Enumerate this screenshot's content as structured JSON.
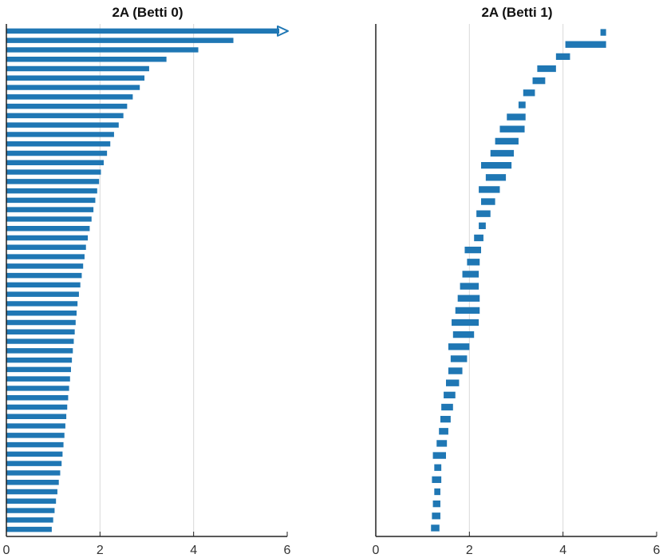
{
  "colors": {
    "bar": "#1f77b4",
    "grid": "#d9d9d9",
    "axis": "#222222"
  },
  "chart_data": [
    {
      "type": "barcode",
      "title": "2A (Betti 0)",
      "xlim": [
        0,
        6
      ],
      "xticks": [
        "0",
        "2",
        "4",
        "6"
      ],
      "grid": "vertical",
      "infinite_bar": {
        "birth": 0,
        "marker": "arrow"
      },
      "intervals": [
        [
          0,
          4.85
        ],
        [
          0,
          4.1
        ],
        [
          0,
          3.42
        ],
        [
          0,
          3.05
        ],
        [
          0,
          2.95
        ],
        [
          0,
          2.85
        ],
        [
          0,
          2.7
        ],
        [
          0,
          2.58
        ],
        [
          0,
          2.5
        ],
        [
          0,
          2.4
        ],
        [
          0,
          2.3
        ],
        [
          0,
          2.22
        ],
        [
          0,
          2.15
        ],
        [
          0,
          2.08
        ],
        [
          0,
          2.02
        ],
        [
          0,
          1.98
        ],
        [
          0,
          1.94
        ],
        [
          0,
          1.9
        ],
        [
          0,
          1.86
        ],
        [
          0,
          1.82
        ],
        [
          0,
          1.78
        ],
        [
          0,
          1.74
        ],
        [
          0,
          1.7
        ],
        [
          0,
          1.67
        ],
        [
          0,
          1.64
        ],
        [
          0,
          1.61
        ],
        [
          0,
          1.58
        ],
        [
          0,
          1.55
        ],
        [
          0,
          1.52
        ],
        [
          0,
          1.5
        ],
        [
          0,
          1.48
        ],
        [
          0,
          1.46
        ],
        [
          0,
          1.44
        ],
        [
          0,
          1.42
        ],
        [
          0,
          1.4
        ],
        [
          0,
          1.38
        ],
        [
          0,
          1.36
        ],
        [
          0,
          1.34
        ],
        [
          0,
          1.32
        ],
        [
          0,
          1.3
        ],
        [
          0,
          1.28
        ],
        [
          0,
          1.26
        ],
        [
          0,
          1.24
        ],
        [
          0,
          1.22
        ],
        [
          0,
          1.2
        ],
        [
          0,
          1.18
        ],
        [
          0,
          1.15
        ],
        [
          0,
          1.12
        ],
        [
          0,
          1.09
        ],
        [
          0,
          1.06
        ],
        [
          0,
          1.03
        ],
        [
          0,
          1.0
        ],
        [
          0,
          0.97
        ]
      ]
    },
    {
      "type": "barcode",
      "title": "2A (Betti 1)",
      "xlim": [
        0,
        6
      ],
      "xticks": [
        "0",
        "2",
        "4",
        "6"
      ],
      "grid": "vertical",
      "intervals": [
        [
          4.8,
          4.92
        ],
        [
          4.05,
          4.92
        ],
        [
          3.85,
          4.15
        ],
        [
          3.45,
          3.85
        ],
        [
          3.35,
          3.62
        ],
        [
          3.15,
          3.4
        ],
        [
          3.05,
          3.2
        ],
        [
          2.8,
          3.2
        ],
        [
          2.65,
          3.18
        ],
        [
          2.55,
          3.05
        ],
        [
          2.45,
          2.95
        ],
        [
          2.25,
          2.9
        ],
        [
          2.35,
          2.78
        ],
        [
          2.2,
          2.65
        ],
        [
          2.25,
          2.55
        ],
        [
          2.15,
          2.45
        ],
        [
          2.2,
          2.35
        ],
        [
          2.1,
          2.3
        ],
        [
          1.9,
          2.25
        ],
        [
          1.95,
          2.22
        ],
        [
          1.85,
          2.2
        ],
        [
          1.8,
          2.2
        ],
        [
          1.75,
          2.22
        ],
        [
          1.7,
          2.22
        ],
        [
          1.62,
          2.2
        ],
        [
          1.65,
          2.1
        ],
        [
          1.55,
          2.0
        ],
        [
          1.6,
          1.95
        ],
        [
          1.55,
          1.85
        ],
        [
          1.5,
          1.78
        ],
        [
          1.45,
          1.7
        ],
        [
          1.4,
          1.65
        ],
        [
          1.38,
          1.6
        ],
        [
          1.35,
          1.55
        ],
        [
          1.3,
          1.52
        ],
        [
          1.22,
          1.5
        ],
        [
          1.25,
          1.4
        ],
        [
          1.2,
          1.4
        ],
        [
          1.25,
          1.38
        ],
        [
          1.22,
          1.38
        ],
        [
          1.2,
          1.38
        ],
        [
          1.18,
          1.36
        ]
      ]
    }
  ]
}
